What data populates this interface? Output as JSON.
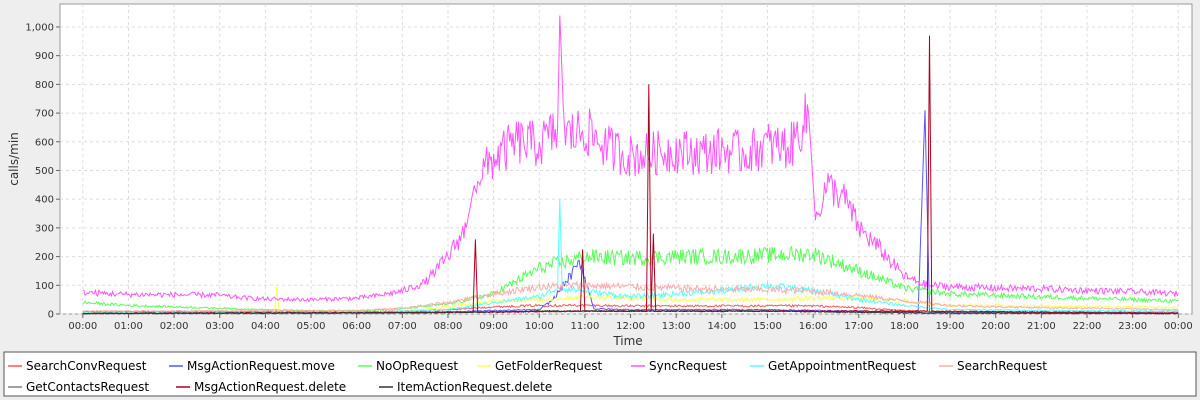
{
  "chart_data": {
    "type": "line",
    "xlabel": "Time",
    "ylabel": "calls/min",
    "ylim": [
      0,
      1080
    ],
    "y_ticks": [
      0,
      100,
      200,
      300,
      400,
      500,
      600,
      700,
      800,
      900,
      1000
    ],
    "y_tick_labels": [
      "0",
      "100",
      "200",
      "300",
      "400",
      "500",
      "600",
      "700",
      "800",
      "900",
      "1,000"
    ],
    "x_range_hours": [
      -0.5,
      24.3
    ],
    "x_ticks": [
      "00:00",
      "01:00",
      "02:00",
      "03:00",
      "04:00",
      "05:00",
      "06:00",
      "07:00",
      "08:00",
      "09:00",
      "10:00",
      "11:00",
      "12:00",
      "13:00",
      "14:00",
      "15:00",
      "16:00",
      "17:00",
      "18:00",
      "19:00",
      "20:00",
      "21:00",
      "22:00",
      "23:00",
      "00:00"
    ],
    "grid": true,
    "legend_position": "bottom",
    "series": [
      {
        "name": "SearchConvRequest",
        "color": "#ff5555",
        "points": [
          [
            0,
            8
          ],
          [
            6,
            8
          ],
          [
            7,
            10
          ],
          [
            8,
            15
          ],
          [
            9,
            25
          ],
          [
            10,
            30
          ],
          [
            11,
            30
          ],
          [
            12,
            28
          ],
          [
            13,
            28
          ],
          [
            14,
            28
          ],
          [
            15,
            28
          ],
          [
            16,
            28
          ],
          [
            17,
            22
          ],
          [
            18,
            12
          ],
          [
            19,
            8
          ],
          [
            24,
            6
          ]
        ]
      },
      {
        "name": "MsgActionRequest.move",
        "color": "#5555ff",
        "points": [
          [
            0,
            3
          ],
          [
            6,
            3
          ],
          [
            8,
            8
          ],
          [
            9,
            12
          ],
          [
            10,
            15
          ],
          [
            10.3,
            50
          ],
          [
            10.9,
            180
          ],
          [
            11.2,
            18
          ],
          [
            12,
            15
          ],
          [
            15,
            15
          ],
          [
            17,
            10
          ],
          [
            18.3,
            6
          ],
          [
            18.45,
            710
          ],
          [
            18.55,
            6
          ],
          [
            24,
            3
          ]
        ]
      },
      {
        "name": "NoOpRequest",
        "color": "#55ff55",
        "points": [
          [
            0,
            40
          ],
          [
            1,
            30
          ],
          [
            2,
            25
          ],
          [
            3,
            20
          ],
          [
            4,
            15
          ],
          [
            5,
            12
          ],
          [
            6,
            12
          ],
          [
            7,
            18
          ],
          [
            8,
            35
          ],
          [
            9,
            70
          ],
          [
            10,
            160
          ],
          [
            11,
            200
          ],
          [
            12,
            195
          ],
          [
            13,
            200
          ],
          [
            14,
            200
          ],
          [
            15,
            205
          ],
          [
            16,
            210
          ],
          [
            17,
            150
          ],
          [
            18,
            90
          ],
          [
            19,
            70
          ],
          [
            20,
            65
          ],
          [
            21,
            60
          ],
          [
            22,
            55
          ],
          [
            23,
            50
          ],
          [
            24,
            45
          ]
        ]
      },
      {
        "name": "GetFolderRequest",
        "color": "#ffff55",
        "points": [
          [
            0,
            4
          ],
          [
            4.2,
            4
          ],
          [
            4.25,
            95
          ],
          [
            4.3,
            4
          ],
          [
            7,
            8
          ],
          [
            8,
            25
          ],
          [
            9,
            45
          ],
          [
            10,
            50
          ],
          [
            11,
            60
          ],
          [
            12,
            55
          ],
          [
            13,
            50
          ],
          [
            14,
            50
          ],
          [
            15,
            50
          ],
          [
            16,
            55
          ],
          [
            17,
            55
          ],
          [
            18,
            45
          ],
          [
            19,
            30
          ],
          [
            20,
            30
          ],
          [
            21,
            28
          ],
          [
            22,
            25
          ],
          [
            23,
            25
          ],
          [
            24,
            22
          ]
        ]
      },
      {
        "name": "SyncRequest",
        "color": "#ff55ff",
        "points": [
          [
            0,
            75
          ],
          [
            1,
            68
          ],
          [
            2,
            67
          ],
          [
            3,
            66
          ],
          [
            3.2,
            60
          ],
          [
            4,
            52
          ],
          [
            5,
            50
          ],
          [
            6,
            55
          ],
          [
            6.5,
            65
          ],
          [
            7,
            80
          ],
          [
            7.5,
            110
          ],
          [
            8,
            200
          ],
          [
            8.4,
            300
          ],
          [
            8.6,
            470
          ],
          [
            9,
            540
          ],
          [
            9.5,
            600
          ],
          [
            10,
            590
          ],
          [
            10.4,
            640
          ],
          [
            10.45,
            1040
          ],
          [
            10.55,
            620
          ],
          [
            11,
            640
          ],
          [
            11.5,
            580
          ],
          [
            12,
            550
          ],
          [
            12.5,
            560
          ],
          [
            13,
            570
          ],
          [
            13.5,
            560
          ],
          [
            14,
            570
          ],
          [
            14.5,
            560
          ],
          [
            15,
            590
          ],
          [
            15.5,
            580
          ],
          [
            15.9,
            700
          ],
          [
            16.05,
            330
          ],
          [
            16.3,
            450
          ],
          [
            16.7,
            400
          ],
          [
            17,
            300
          ],
          [
            17.5,
            220
          ],
          [
            18,
            130
          ],
          [
            18.5,
            100
          ],
          [
            19,
            95
          ],
          [
            20,
            90
          ],
          [
            21,
            88
          ],
          [
            22,
            82
          ],
          [
            23,
            78
          ],
          [
            24,
            70
          ]
        ]
      },
      {
        "name": "GetAppointmentRequest",
        "color": "#55ffff",
        "points": [
          [
            0,
            5
          ],
          [
            6,
            5
          ],
          [
            8,
            15
          ],
          [
            9,
            40
          ],
          [
            10,
            60
          ],
          [
            10.4,
            90
          ],
          [
            10.45,
            400
          ],
          [
            10.5,
            90
          ],
          [
            11,
            80
          ],
          [
            12,
            60
          ],
          [
            13,
            70
          ],
          [
            14,
            80
          ],
          [
            15,
            100
          ],
          [
            16,
            80
          ],
          [
            17,
            50
          ],
          [
            18,
            30
          ],
          [
            19,
            15
          ],
          [
            24,
            10
          ]
        ]
      },
      {
        "name": "SearchRequest",
        "color": "#ffaaaa",
        "points": [
          [
            0,
            10
          ],
          [
            6,
            12
          ],
          [
            7,
            20
          ],
          [
            8,
            40
          ],
          [
            9,
            70
          ],
          [
            10,
            95
          ],
          [
            11,
            100
          ],
          [
            12,
            95
          ],
          [
            13,
            90
          ],
          [
            14,
            85
          ],
          [
            15,
            85
          ],
          [
            16,
            80
          ],
          [
            17,
            65
          ],
          [
            18,
            45
          ],
          [
            19,
            30
          ],
          [
            20,
            25
          ],
          [
            22,
            20
          ],
          [
            24,
            15
          ]
        ]
      },
      {
        "name": "GetContactsRequest",
        "color": "#808080",
        "points": [
          [
            0,
            2
          ],
          [
            7,
            3
          ],
          [
            9,
            8
          ],
          [
            12,
            10
          ],
          [
            15,
            10
          ],
          [
            17,
            6
          ],
          [
            19,
            4
          ],
          [
            24,
            2
          ]
        ]
      },
      {
        "name": "MsgActionRequest.delete",
        "color": "#b00020",
        "points": [
          [
            0,
            2
          ],
          [
            8,
            6
          ],
          [
            8.55,
            6
          ],
          [
            8.6,
            260
          ],
          [
            8.65,
            6
          ],
          [
            10.9,
            10
          ],
          [
            10.95,
            225
          ],
          [
            11.0,
            10
          ],
          [
            12.35,
            10
          ],
          [
            12.4,
            800
          ],
          [
            12.45,
            10
          ],
          [
            12.5,
            280
          ],
          [
            12.55,
            10
          ],
          [
            18.5,
            10
          ],
          [
            18.55,
            970
          ],
          [
            18.6,
            10
          ],
          [
            24,
            2
          ]
        ]
      },
      {
        "name": "ItemActionRequest.delete",
        "color": "#333333",
        "points": [
          [
            0,
            2
          ],
          [
            8,
            5
          ],
          [
            10,
            10
          ],
          [
            12,
            10
          ],
          [
            15,
            10
          ],
          [
            17,
            6
          ],
          [
            19,
            3
          ],
          [
            24,
            2
          ]
        ]
      }
    ]
  }
}
